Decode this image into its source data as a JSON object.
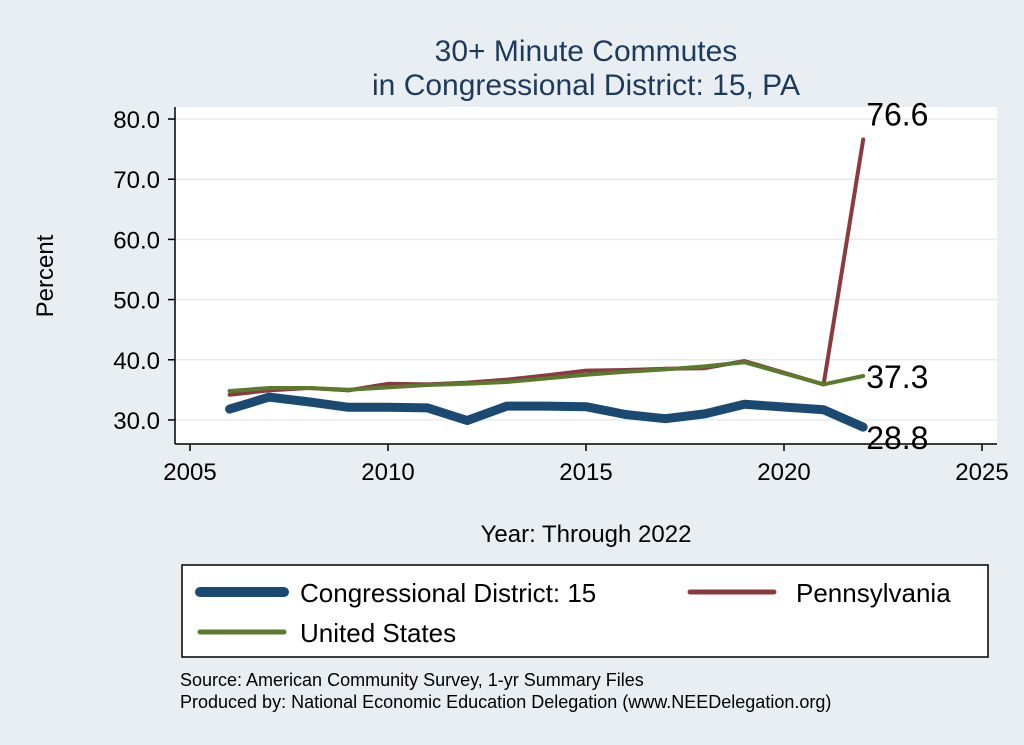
{
  "chart_data": {
    "type": "line",
    "title": [
      "30+ Minute Commutes",
      "in Congressional District:  15, PA"
    ],
    "xlabel": "Year: Through 2022",
    "ylabel": "Percent",
    "xlim": [
      2005,
      2025
    ],
    "ylim": [
      26,
      82
    ],
    "x_ticks": [
      2005,
      2010,
      2015,
      2020,
      2025
    ],
    "y_ticks": [
      30,
      40,
      50,
      60,
      70,
      80
    ],
    "y_tick_labels": [
      "30.0",
      "40.0",
      "50.0",
      "60.0",
      "70.0",
      "80.0"
    ],
    "grid": true,
    "legend_position": "bottom",
    "x": [
      2006,
      2007,
      2008,
      2009,
      2010,
      2011,
      2012,
      2013,
      2014,
      2015,
      2016,
      2017,
      2018,
      2019,
      2021,
      2022
    ],
    "series": [
      {
        "name": "Congressional District:  15",
        "color": "#1a4a72",
        "width": 9,
        "values": [
          31.8,
          33.8,
          33.0,
          32.1,
          32.1,
          32.0,
          29.9,
          32.3,
          32.3,
          32.2,
          30.9,
          30.2,
          31.0,
          32.6,
          31.7,
          28.8
        ],
        "end_label": "28.8"
      },
      {
        "name": "Pennsylvania",
        "color": "#8b3a42",
        "width": 4,
        "values": [
          34.2,
          34.9,
          35.3,
          34.9,
          36.0,
          35.9,
          36.2,
          36.7,
          37.4,
          38.2,
          38.3,
          38.5,
          38.6,
          39.8,
          35.9,
          76.6
        ],
        "end_label": "76.6"
      },
      {
        "name": "United States",
        "color": "#5b7a2e",
        "width": 4,
        "values": [
          34.8,
          35.3,
          35.3,
          35.0,
          35.4,
          35.8,
          36.0,
          36.3,
          36.9,
          37.5,
          38.0,
          38.4,
          38.9,
          39.6,
          35.9,
          37.3
        ],
        "end_label": "37.3"
      }
    ],
    "legend_order": [
      0,
      1,
      2
    ]
  },
  "footer": {
    "source": "Source: American Community Survey, 1-yr Summary Files",
    "produced_by": "Produced by: National Economic Education Delegation (www.NEEDelegation.org)"
  }
}
